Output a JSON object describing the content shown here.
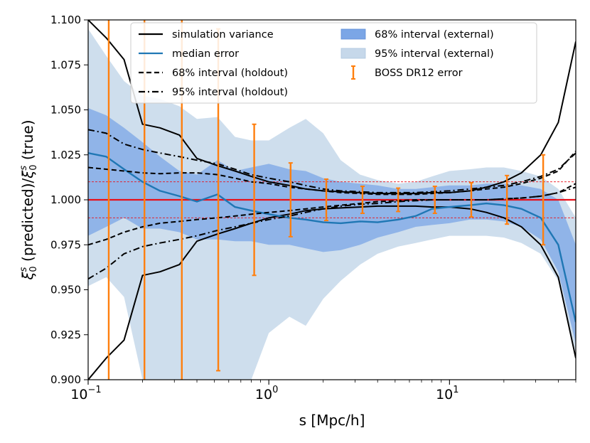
{
  "chart_data": {
    "type": "line",
    "title": "",
    "xlabel": "s [Mpc/h]",
    "ylabel_main": "(predicted)/",
    "ylabel_xi": "ξ",
    "ylabel_sub": "0",
    "ylabel_sup": "s",
    "ylabel_tail": "(true)",
    "xscale": "log",
    "xlim": [
      0.1,
      50
    ],
    "ylim": [
      0.9,
      1.1
    ],
    "x_ticks": [
      {
        "value": 0.1,
        "base": "10",
        "exp": "−1"
      },
      {
        "value": 1,
        "base": "10",
        "exp": "0"
      },
      {
        "value": 10,
        "base": "10",
        "exp": "1"
      }
    ],
    "y_ticks": [
      {
        "value": 0.9,
        "label": "0.900"
      },
      {
        "value": 0.925,
        "label": "0.925"
      },
      {
        "value": 0.95,
        "label": "0.950"
      },
      {
        "value": 0.975,
        "label": "0.975"
      },
      {
        "value": 1.0,
        "label": "1.000"
      },
      {
        "value": 1.025,
        "label": "1.025"
      },
      {
        "value": 1.05,
        "label": "1.050"
      },
      {
        "value": 1.075,
        "label": "1.075"
      },
      {
        "value": 1.1,
        "label": "1.100"
      }
    ],
    "reference_line": 1.0,
    "tolerance_lines": [
      0.99,
      1.01
    ],
    "colors": {
      "simulation": "#000000",
      "median": "#1f77b4",
      "band68": "#7ba6e6",
      "band95": "#c6d8ea",
      "boss": "#ff7f0e",
      "reference": "#e8101a"
    },
    "legend": [
      {
        "label": "simulation variance",
        "kind": "solid"
      },
      {
        "label": "median error",
        "kind": "median"
      },
      {
        "label": "68% interval (holdout)",
        "kind": "dashed"
      },
      {
        "label": "95% interval (holdout)",
        "kind": "dashdot"
      },
      {
        "label": "68% interval (external)",
        "kind": "band68"
      },
      {
        "label": "95% interval (external)",
        "kind": "band95"
      },
      {
        "label": "BOSS DR12 error",
        "kind": "errorbar"
      }
    ],
    "legend_position": "top",
    "s": [
      0.1,
      0.126,
      0.158,
      0.2,
      0.25,
      0.32,
      0.4,
      0.52,
      0.65,
      0.8,
      1.0,
      1.3,
      1.6,
      2.0,
      2.5,
      3.2,
      4.0,
      5.2,
      6.5,
      8.0,
      10,
      13,
      16,
      20,
      25,
      32,
      40,
      50
    ],
    "series": [
      {
        "name": "simulation variance upper",
        "style": "solid",
        "values": [
          1.1,
          1.09,
          1.078,
          1.042,
          1.04,
          1.036,
          1.023,
          1.019,
          1.016,
          1.013,
          1.01,
          1.008,
          1.006,
          1.005,
          1.0045,
          1.004,
          1.0035,
          1.0035,
          1.0035,
          1.004,
          1.004,
          1.005,
          1.007,
          1.01,
          1.015,
          1.025,
          1.043,
          1.088
        ]
      },
      {
        "name": "simulation variance lower",
        "style": "solid",
        "values": [
          0.9,
          0.912,
          0.922,
          0.958,
          0.96,
          0.964,
          0.977,
          0.981,
          0.984,
          0.987,
          0.99,
          0.992,
          0.994,
          0.995,
          0.9955,
          0.996,
          0.9965,
          0.9965,
          0.9965,
          0.996,
          0.996,
          0.995,
          0.993,
          0.99,
          0.985,
          0.975,
          0.957,
          0.912
        ]
      },
      {
        "name": "median error",
        "style": "median",
        "values": [
          1.026,
          1.024,
          1.017,
          1.01,
          1.005,
          1.002,
          0.999,
          1.003,
          0.996,
          0.994,
          0.992,
          0.99,
          0.989,
          0.9875,
          0.987,
          0.988,
          0.9875,
          0.989,
          0.991,
          0.995,
          0.996,
          0.997,
          0.998,
          0.997,
          0.995,
          0.99,
          0.975,
          0.932
        ]
      },
      {
        "name": "68% holdout upper",
        "style": "dashed",
        "values": [
          1.018,
          1.017,
          1.016,
          1.015,
          1.0145,
          1.015,
          1.015,
          1.014,
          1.012,
          1.01,
          1.009,
          1.007,
          1.006,
          1.005,
          1.004,
          1.0035,
          1.003,
          1.003,
          1.003,
          1.0035,
          1.004,
          1.005,
          1.006,
          1.007,
          1.009,
          1.012,
          1.016,
          1.027
        ]
      },
      {
        "name": "68% holdout lower",
        "style": "dashed",
        "values": [
          0.975,
          0.978,
          0.982,
          0.985,
          0.987,
          0.988,
          0.989,
          0.99,
          0.991,
          0.992,
          0.993,
          0.994,
          0.995,
          0.996,
          0.997,
          0.998,
          0.999,
          0.9995,
          1.0,
          1.0,
          1.0,
          1.0,
          1.0,
          1.0005,
          1.001,
          1.002,
          1.004,
          1.009
        ]
      },
      {
        "name": "95% holdout upper",
        "style": "dashdot",
        "values": [
          1.039,
          1.037,
          1.031,
          1.028,
          1.026,
          1.024,
          1.022,
          1.02,
          1.017,
          1.014,
          1.012,
          1.01,
          1.008,
          1.006,
          1.005,
          1.0045,
          1.004,
          1.004,
          1.004,
          1.0045,
          1.005,
          1.006,
          1.007,
          1.008,
          1.01,
          1.013,
          1.017,
          1.026
        ]
      },
      {
        "name": "95% holdout lower",
        "style": "dashdot",
        "values": [
          0.956,
          0.962,
          0.97,
          0.974,
          0.976,
          0.978,
          0.98,
          0.983,
          0.985,
          0.987,
          0.989,
          0.991,
          0.993,
          0.995,
          0.9965,
          0.9975,
          0.998,
          0.999,
          0.9995,
          1.0,
          1.0,
          1.0,
          1.0,
          1.0005,
          1.001,
          1.002,
          1.004,
          1.007
        ]
      }
    ],
    "band68_external": {
      "upper": [
        1.051,
        1.047,
        1.04,
        1.032,
        1.024,
        1.016,
        1.014,
        1.022,
        1.016,
        1.018,
        1.02,
        1.017,
        1.016,
        1.012,
        1.01,
        1.009,
        1.008,
        1.006,
        1.006,
        1.007,
        1.008,
        1.008,
        1.009,
        1.009,
        1.008,
        1.006,
        1.0,
        0.975
      ],
      "lower": [
        0.98,
        0.985,
        0.99,
        0.984,
        0.984,
        0.982,
        0.978,
        0.978,
        0.977,
        0.977,
        0.975,
        0.975,
        0.973,
        0.971,
        0.972,
        0.975,
        0.979,
        0.982,
        0.985,
        0.986,
        0.987,
        0.989,
        0.989,
        0.988,
        0.985,
        0.978,
        0.96,
        0.92
      ]
    },
    "band95_external": {
      "upper": [
        1.095,
        1.08,
        1.066,
        1.058,
        1.056,
        1.052,
        1.045,
        1.046,
        1.035,
        1.033,
        1.033,
        1.04,
        1.045,
        1.037,
        1.022,
        1.014,
        1.011,
        1.009,
        1.01,
        1.013,
        1.016,
        1.017,
        1.018,
        1.018,
        1.016,
        1.013,
        1.006,
        0.99
      ],
      "lower": [
        0.952,
        0.957,
        0.946,
        0.9,
        0.9,
        0.9,
        0.9,
        0.9,
        0.9,
        0.9,
        0.926,
        0.935,
        0.93,
        0.945,
        0.955,
        0.964,
        0.97,
        0.974,
        0.976,
        0.978,
        0.98,
        0.98,
        0.98,
        0.979,
        0.976,
        0.97,
        0.955,
        0.915
      ]
    },
    "boss_errors": [
      {
        "s": 0.13,
        "center": 1.0,
        "err": 0.115
      },
      {
        "s": 0.205,
        "center": 1.0,
        "err": 0.115
      },
      {
        "s": 0.33,
        "center": 1.0,
        "err": 0.115
      },
      {
        "s": 0.525,
        "center": 1.0,
        "err": 0.095
      },
      {
        "s": 0.83,
        "center": 1.0,
        "err": 0.042
      },
      {
        "s": 1.32,
        "center": 1.0,
        "err": 0.0205
      },
      {
        "s": 2.08,
        "center": 1.0,
        "err": 0.0115
      },
      {
        "s": 3.3,
        "center": 1.0,
        "err": 0.0075
      },
      {
        "s": 5.2,
        "center": 1.0,
        "err": 0.0065
      },
      {
        "s": 8.3,
        "center": 1.0,
        "err": 0.0075
      },
      {
        "s": 13.2,
        "center": 1.0,
        "err": 0.0095
      },
      {
        "s": 20.8,
        "center": 1.0,
        "err": 0.0135
      },
      {
        "s": 33,
        "center": 1.0,
        "err": 0.025
      }
    ]
  }
}
